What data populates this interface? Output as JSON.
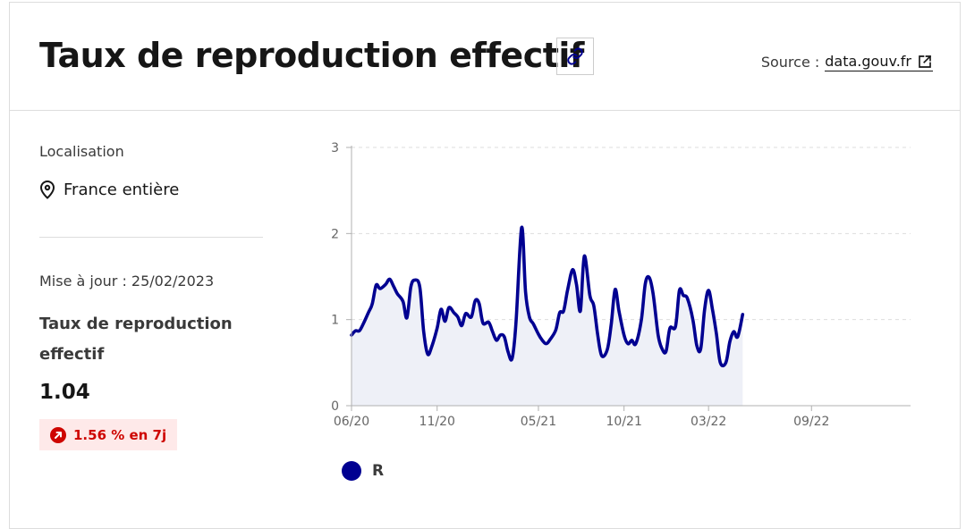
{
  "header": {
    "title": "Taux de reproduction effectif",
    "source_prefix": "Source :",
    "source_link": "data.gouv.fr"
  },
  "sidebar": {
    "location_label": "Localisation",
    "location_value": "France entière",
    "update": "Mise à jour : 25/02/2023",
    "kpi_label": "Taux de reproduction effectif",
    "kpi_value": "1.04",
    "trend": "1.56 % en 7j"
  },
  "icons": {
    "link": "link-icon",
    "external": "external-link-icon",
    "location": "map-pin-icon",
    "trend": "arrow-up-right-circle-icon"
  },
  "colors": {
    "line": "#000091",
    "area": "#eef0f7",
    "badge_bg": "#fee9e9",
    "badge_text": "#ce0500"
  },
  "chart_data": {
    "type": "area",
    "x_tick_labels": [
      "06/20",
      "11/20",
      "05/21",
      "10/21",
      "03/22",
      "09/22"
    ],
    "x_tick_dates": [
      "2020-06-01",
      "2020-11-01",
      "2021-05-01",
      "2021-10-01",
      "2022-03-01",
      "2022-09-01"
    ],
    "y_ticks": [
      0,
      1,
      2,
      3
    ],
    "xlim": [
      "2020-06-01",
      "2023-02-25"
    ],
    "ylim": [
      0,
      3
    ],
    "grid": "horizontal dashed",
    "legend_position": "bottom-left",
    "series": [
      {
        "name": "R",
        "color": "#000091",
        "points": [
          [
            "2020-06-01",
            0.82
          ],
          [
            "2020-06-08",
            0.87
          ],
          [
            "2020-06-15",
            0.87
          ],
          [
            "2020-06-22",
            0.95
          ],
          [
            "2020-07-01",
            1.08
          ],
          [
            "2020-07-08",
            1.18
          ],
          [
            "2020-07-15",
            1.4
          ],
          [
            "2020-07-22",
            1.36
          ],
          [
            "2020-08-01",
            1.41
          ],
          [
            "2020-08-08",
            1.47
          ],
          [
            "2020-08-15",
            1.39
          ],
          [
            "2020-08-22",
            1.3
          ],
          [
            "2020-09-01",
            1.21
          ],
          [
            "2020-09-08",
            1.02
          ],
          [
            "2020-09-15",
            1.38
          ],
          [
            "2020-09-22",
            1.46
          ],
          [
            "2020-10-01",
            1.38
          ],
          [
            "2020-10-08",
            0.86
          ],
          [
            "2020-10-15",
            0.6
          ],
          [
            "2020-10-22",
            0.68
          ],
          [
            "2020-11-01",
            0.9
          ],
          [
            "2020-11-08",
            1.12
          ],
          [
            "2020-11-15",
            0.98
          ],
          [
            "2020-11-22",
            1.14
          ],
          [
            "2020-12-01",
            1.08
          ],
          [
            "2020-12-08",
            1.03
          ],
          [
            "2020-12-15",
            0.93
          ],
          [
            "2020-12-22",
            1.07
          ],
          [
            "2021-01-01",
            1.03
          ],
          [
            "2021-01-08",
            1.22
          ],
          [
            "2021-01-15",
            1.19
          ],
          [
            "2021-01-22",
            0.96
          ],
          [
            "2021-02-01",
            0.97
          ],
          [
            "2021-02-08",
            0.86
          ],
          [
            "2021-02-15",
            0.76
          ],
          [
            "2021-02-22",
            0.82
          ],
          [
            "2021-03-01",
            0.8
          ],
          [
            "2021-03-08",
            0.62
          ],
          [
            "2021-03-15",
            0.55
          ],
          [
            "2021-03-22",
            0.97
          ],
          [
            "2021-04-01",
            2.07
          ],
          [
            "2021-04-08",
            1.32
          ],
          [
            "2021-04-15",
            1.03
          ],
          [
            "2021-04-22",
            0.95
          ],
          [
            "2021-05-01",
            0.83
          ],
          [
            "2021-05-08",
            0.76
          ],
          [
            "2021-05-15",
            0.72
          ],
          [
            "2021-05-22",
            0.77
          ],
          [
            "2021-06-01",
            0.88
          ],
          [
            "2021-06-08",
            1.08
          ],
          [
            "2021-06-15",
            1.1
          ],
          [
            "2021-06-22",
            1.34
          ],
          [
            "2021-07-01",
            1.58
          ],
          [
            "2021-07-08",
            1.41
          ],
          [
            "2021-07-15",
            1.1
          ],
          [
            "2021-07-22",
            1.74
          ],
          [
            "2021-08-01",
            1.28
          ],
          [
            "2021-08-08",
            1.16
          ],
          [
            "2021-08-15",
            0.82
          ],
          [
            "2021-08-22",
            0.58
          ],
          [
            "2021-09-01",
            0.65
          ],
          [
            "2021-09-08",
            0.94
          ],
          [
            "2021-09-15",
            1.35
          ],
          [
            "2021-09-22",
            1.1
          ],
          [
            "2021-10-01",
            0.82
          ],
          [
            "2021-10-08",
            0.72
          ],
          [
            "2021-10-15",
            0.76
          ],
          [
            "2021-10-22",
            0.72
          ],
          [
            "2021-11-01",
            1.0
          ],
          [
            "2021-11-08",
            1.42
          ],
          [
            "2021-11-15",
            1.49
          ],
          [
            "2021-11-22",
            1.3
          ],
          [
            "2021-12-01",
            0.82
          ],
          [
            "2021-12-08",
            0.66
          ],
          [
            "2021-12-15",
            0.63
          ],
          [
            "2021-12-22",
            0.9
          ],
          [
            "2022-01-01",
            0.92
          ],
          [
            "2022-01-08",
            1.34
          ],
          [
            "2022-01-15",
            1.28
          ],
          [
            "2022-01-22",
            1.25
          ],
          [
            "2022-02-01",
            1.0
          ],
          [
            "2022-02-08",
            0.7
          ],
          [
            "2022-02-15",
            0.66
          ],
          [
            "2022-02-22",
            1.12
          ],
          [
            "2022-03-01",
            1.34
          ],
          [
            "2022-03-08",
            1.12
          ],
          [
            "2022-03-15",
            0.84
          ],
          [
            "2022-03-22",
            0.5
          ],
          [
            "2022-04-01",
            0.5
          ],
          [
            "2022-04-08",
            0.74
          ],
          [
            "2022-04-15",
            0.86
          ],
          [
            "2022-04-22",
            0.8
          ],
          [
            "2022-05-01",
            1.06
          ]
        ]
      }
    ]
  }
}
